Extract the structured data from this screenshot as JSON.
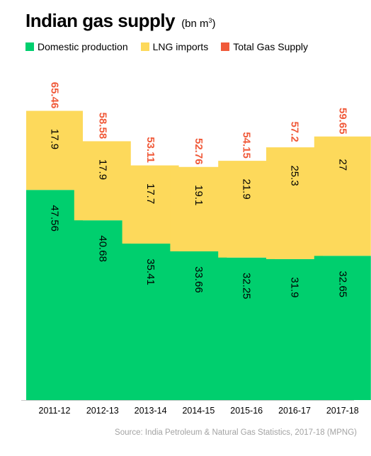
{
  "title": "Indian gas supply",
  "unit_prefix": "(bn m",
  "unit_sup": "3",
  "unit_suffix": ")",
  "source": "Source: India Petroleum & Natural Gas Statistics, 2017-18 (MPNG)",
  "colors": {
    "domestic": "#00cf6e",
    "lng": "#fdd95b",
    "total": "#f05a3a",
    "axis": "#c9c9c9"
  },
  "legend": [
    {
      "label": "Domestic production",
      "color": "#00cf6e"
    },
    {
      "label": "LNG imports",
      "color": "#fdd95b"
    },
    {
      "label": "Total Gas Supply",
      "color": "#f05a3a"
    }
  ],
  "chart_data": {
    "type": "bar",
    "stacked": true,
    "categories": [
      "2011-12",
      "2012-13",
      "2013-14",
      "2014-15",
      "2015-16",
      "2016-17",
      "2017-18"
    ],
    "series": [
      {
        "name": "Domestic production",
        "values": [
          47.56,
          40.68,
          35.41,
          33.66,
          32.25,
          31.9,
          32.65
        ],
        "labels": [
          "47.56",
          "40.68",
          "35.41",
          "33.66",
          "32.25",
          "31.9",
          "32.65"
        ]
      },
      {
        "name": "LNG imports",
        "values": [
          17.9,
          17.9,
          17.7,
          19.1,
          21.9,
          25.3,
          27
        ],
        "labels": [
          "17.9",
          "17.9",
          "17.7",
          "19.1",
          "21.9",
          "25.3",
          "27"
        ]
      }
    ],
    "totals": {
      "name": "Total Gas Supply",
      "values": [
        65.46,
        58.58,
        53.11,
        52.76,
        54.15,
        57.2,
        59.65
      ],
      "labels": [
        "65.46",
        "58.58",
        "53.11",
        "52.76",
        "54.15",
        "57.2",
        "59.65"
      ]
    },
    "ylim": [
      0,
      75
    ],
    "grid": false,
    "legend_position": "top-left"
  }
}
